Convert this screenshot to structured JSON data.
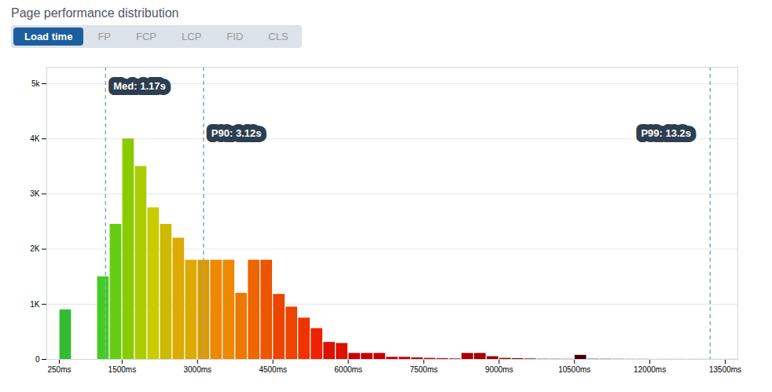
{
  "chart_data": {
    "type": "bar",
    "title": "Page performance distribution",
    "tabs": [
      "Load time",
      "FP",
      "FCP",
      "LCP",
      "FID",
      "CLS"
    ],
    "x": [
      375,
      625,
      875,
      1125,
      1375,
      1625,
      1875,
      2125,
      2375,
      2625,
      2875,
      3125,
      3375,
      3625,
      3875,
      4125,
      4375,
      4625,
      4875,
      5125,
      5375,
      5625,
      5875,
      6125,
      6375,
      6625,
      6875,
      7125,
      7375,
      7625,
      7875,
      8125,
      8375,
      8625,
      8875,
      9125,
      9375,
      9625,
      9875,
      10125,
      10375,
      10625,
      10875,
      11125,
      11375,
      11625,
      11875,
      12125,
      12375,
      12625,
      12875,
      13125,
      13375,
      13625
    ],
    "values": [
      900,
      0,
      0,
      1500,
      2450,
      4000,
      3500,
      2750,
      2450,
      2200,
      1800,
      1800,
      1800,
      1800,
      1200,
      1800,
      1800,
      1180,
      950,
      750,
      560,
      310,
      290,
      110,
      110,
      110,
      40,
      40,
      30,
      20,
      15,
      10,
      110,
      110,
      50,
      20,
      15,
      10,
      5,
      4,
      3,
      75,
      5,
      4,
      3,
      2,
      2,
      1,
      1,
      1,
      1,
      1,
      1,
      1
    ],
    "colors": [
      "#33bb33",
      "#33bb33",
      "#33bb33",
      "#44cc22",
      "#66cc11",
      "#88cc00",
      "#aacc00",
      "#c8cc00",
      "#ccbb00",
      "#ddaa00",
      "#ddaa00",
      "#dd9900",
      "#ee8800",
      "#ee8800",
      "#ee7700",
      "#ee6600",
      "#ee5500",
      "#ee4400",
      "#ee4400",
      "#ee3300",
      "#ee2200",
      "#dd1100",
      "#dd1100",
      "#cc0000",
      "#cc0000",
      "#cc0000",
      "#cc0000",
      "#cc0000",
      "#cc0000",
      "#cc0000",
      "#bb0000",
      "#bb0000",
      "#aa0000",
      "#aa0000",
      "#990000",
      "#990000",
      "#880000",
      "#880000",
      "#770000",
      "#660000",
      "#550000",
      "#440000",
      "#330000",
      "#220000",
      "#220000",
      "#110000",
      "#110000",
      "#110000",
      "#110000",
      "#110000",
      "#110000",
      "#110000",
      "#110000",
      "#110000"
    ],
    "xlim": [
      0,
      13750
    ],
    "xticks": [
      {
        "value": 250,
        "label": "250ms"
      },
      {
        "value": 1500,
        "label": "1500ms"
      },
      {
        "value": 3000,
        "label": "3000ms"
      },
      {
        "value": 4500,
        "label": "4500ms"
      },
      {
        "value": 6000,
        "label": "6000ms"
      },
      {
        "value": 7500,
        "label": "7500ms"
      },
      {
        "value": 9000,
        "label": "9000ms"
      },
      {
        "value": 10500,
        "label": "10500ms"
      },
      {
        "value": 12000,
        "label": "12000ms"
      },
      {
        "value": 13500,
        "label": "13500ms"
      }
    ],
    "ylim": [
      0,
      5300
    ],
    "yticks": [
      0,
      {
        "value": 1000,
        "label": "1K"
      },
      {
        "value": 2000,
        "label": "2K"
      },
      {
        "value": 3000,
        "label": "3K"
      },
      {
        "value": 4000,
        "label": "4K"
      },
      {
        "value": 5000,
        "label": "5k"
      }
    ],
    "grid": true,
    "annotations": [
      {
        "text": "Med: 1.17s",
        "x": 1170,
        "text_x": 1200,
        "text_y": 4950
      },
      {
        "text": "P90: 3.12s",
        "x": 3120,
        "text_x": 3150,
        "text_y": 4100
      },
      {
        "text": "P99: 13.2s",
        "x": 13200,
        "text_x": 11700,
        "text_y": 4100
      }
    ]
  }
}
